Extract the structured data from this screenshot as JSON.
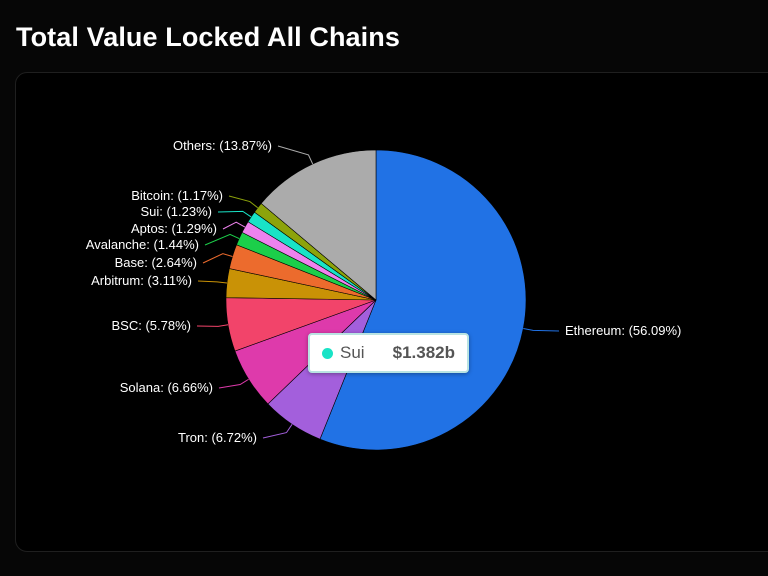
{
  "page": {
    "title": "Total Value Locked All Chains"
  },
  "chart_data": {
    "type": "pie",
    "title": "",
    "start_angle_deg": 0,
    "direction": "clockwise",
    "slices": [
      {
        "name": "Ethereum",
        "percent": 56.09,
        "label": "Ethereum: (56.09%)",
        "color": "#2172e5"
      },
      {
        "name": "Tron",
        "percent": 6.72,
        "label": "Tron: (6.72%)",
        "color": "#a35fdc"
      },
      {
        "name": "Solana",
        "percent": 6.66,
        "label": "Solana: (6.66%)",
        "color": "#de3aab"
      },
      {
        "name": "BSC",
        "percent": 5.78,
        "label": "BSC: (5.78%)",
        "color": "#f2446a"
      },
      {
        "name": "Arbitrum",
        "percent": 3.11,
        "label": "Arbitrum: (3.11%)",
        "color": "#c99206"
      },
      {
        "name": "Base",
        "percent": 2.64,
        "label": "Base: (2.64%)",
        "color": "#ec6b2d"
      },
      {
        "name": "Avalanche",
        "percent": 1.44,
        "label": "Avalanche: (1.44%)",
        "color": "#1ccf4a"
      },
      {
        "name": "Aptos",
        "percent": 1.29,
        "label": "Aptos: (1.29%)",
        "color": "#ee82ee"
      },
      {
        "name": "Sui",
        "percent": 1.23,
        "label": "Sui: (1.23%)",
        "color": "#19e3c6"
      },
      {
        "name": "Bitcoin",
        "percent": 1.17,
        "label": "Bitcoin: (1.17%)",
        "color": "#8da30b"
      },
      {
        "name": "Others",
        "percent": 13.87,
        "label": "Others: (13.87%)",
        "color": "#ababab"
      }
    ]
  },
  "tooltip": {
    "series": "Sui",
    "value": "$1.382b",
    "color": "#19e3c6"
  }
}
